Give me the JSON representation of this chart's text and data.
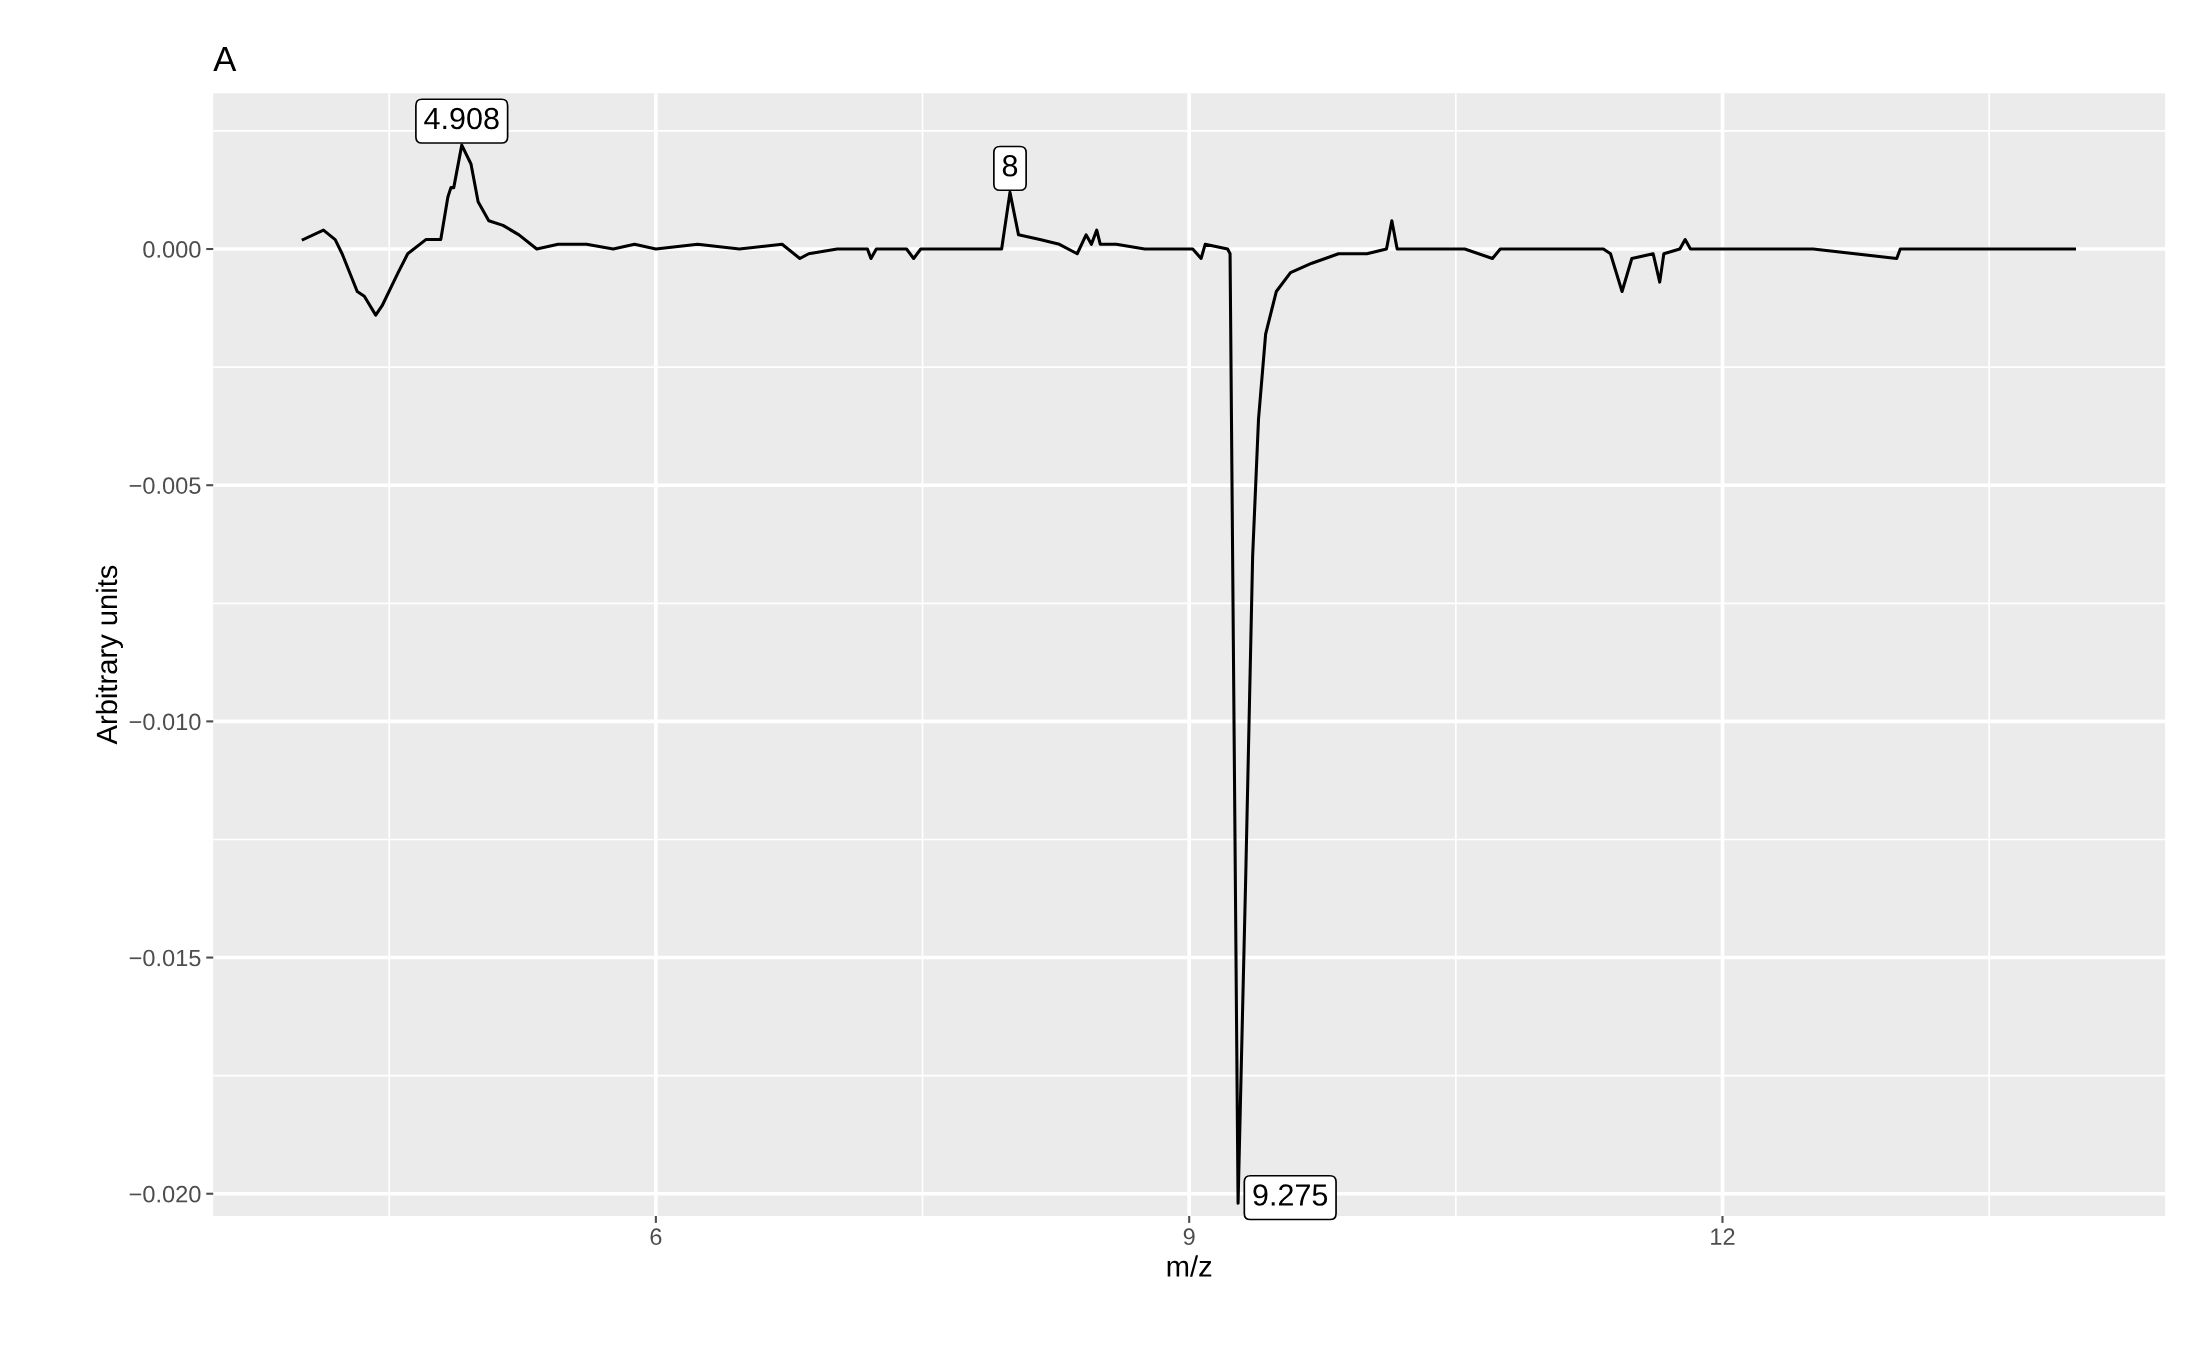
{
  "chart_data": {
    "type": "line",
    "title": "A",
    "xlabel": "m/z",
    "ylabel": "Arbitrary units",
    "xlim": [
      3.51,
      14.49
    ],
    "ylim": [
      -0.02047,
      0.0033
    ],
    "xticks": [
      6,
      9,
      12
    ],
    "yticks": [
      {
        "value": 0,
        "label": "0.000"
      },
      {
        "value": -0.005,
        "label": "−0.005"
      },
      {
        "value": -0.01,
        "label": "−0.010"
      },
      {
        "value": -0.015,
        "label": "−0.015"
      },
      {
        "value": -0.02,
        "label": "−0.020"
      }
    ],
    "grid": true,
    "legend": false,
    "series": [
      {
        "color": "#000000",
        "x": [
          4.016,
          4.13,
          4.196,
          4.235,
          4.32,
          4.36,
          4.424,
          4.46,
          4.55,
          4.604,
          4.706,
          4.79,
          4.83,
          4.847,
          4.863,
          4.908,
          4.96,
          5.0,
          5.06,
          5.14,
          5.23,
          5.33,
          5.45,
          5.61,
          5.76,
          5.88,
          6.0,
          6.235,
          6.47,
          6.71,
          6.81,
          6.86,
          7.02,
          7.19,
          7.21,
          7.24,
          7.41,
          7.45,
          7.49,
          7.8,
          7.945,
          7.992,
          8.04,
          8.16,
          8.27,
          8.37,
          8.42,
          8.45,
          8.48,
          8.5,
          8.59,
          8.75,
          8.9,
          9.02,
          9.067,
          9.09,
          9.216,
          9.23,
          9.275,
          9.318,
          9.357,
          9.39,
          9.43,
          9.49,
          9.57,
          9.69,
          9.84,
          10.0,
          10.11,
          10.14,
          10.17,
          10.31,
          10.55,
          10.706,
          10.75,
          11.33,
          11.37,
          11.435,
          11.49,
          11.61,
          11.647,
          11.67,
          11.76,
          11.79,
          11.82,
          12.51,
          12.98,
          13.0,
          13.02,
          13.98
        ],
        "values": [
          0.0002,
          0.0004,
          0.0002,
          -0.0001,
          -0.0009,
          -0.001,
          -0.0014,
          -0.0012,
          -0.0005,
          -0.0001,
          0.0002,
          0.0002,
          0.0011,
          0.0013,
          0.0013,
          0.0022,
          0.0018,
          0.001,
          0.0006,
          0.0005,
          0.0003,
          0.0,
          0.0001,
          0.0001,
          0.0,
          0.0001,
          0.0,
          0.0001,
          0.0,
          0.0001,
          -0.0002,
          -0.0001,
          0.0,
          0.0,
          -0.0002,
          0.0,
          0.0,
          -0.0002,
          0.0,
          0.0,
          0.0,
          0.0012,
          0.0003,
          0.0002,
          0.0001,
          -0.0001,
          0.0003,
          0.0001,
          0.0004,
          0.0001,
          0.0001,
          0.0,
          0.0,
          0.0,
          -0.0002,
          0.0001,
          0.0,
          -0.0001,
          -0.0202,
          -0.0133,
          -0.0065,
          -0.0036,
          -0.0018,
          -0.0009,
          -0.0005,
          -0.0003,
          -0.0001,
          -0.0001,
          0.0,
          0.0006,
          0.0,
          0.0,
          0.0,
          -0.0002,
          0.0,
          0.0,
          -0.0001,
          -0.0009,
          -0.0002,
          -0.0001,
          -0.0007,
          -0.0001,
          0.0,
          0.0002,
          0.0,
          0.0,
          -0.0002,
          0.0,
          0.0,
          0.0
        ]
      }
    ],
    "annotations": [
      {
        "text": "4.908",
        "x": 4.908,
        "y": 0.0022
      },
      {
        "text": "8",
        "x": 7.992,
        "y": 0.0012
      },
      {
        "text": "9.275",
        "x": 9.275,
        "y": -0.0202
      }
    ]
  }
}
